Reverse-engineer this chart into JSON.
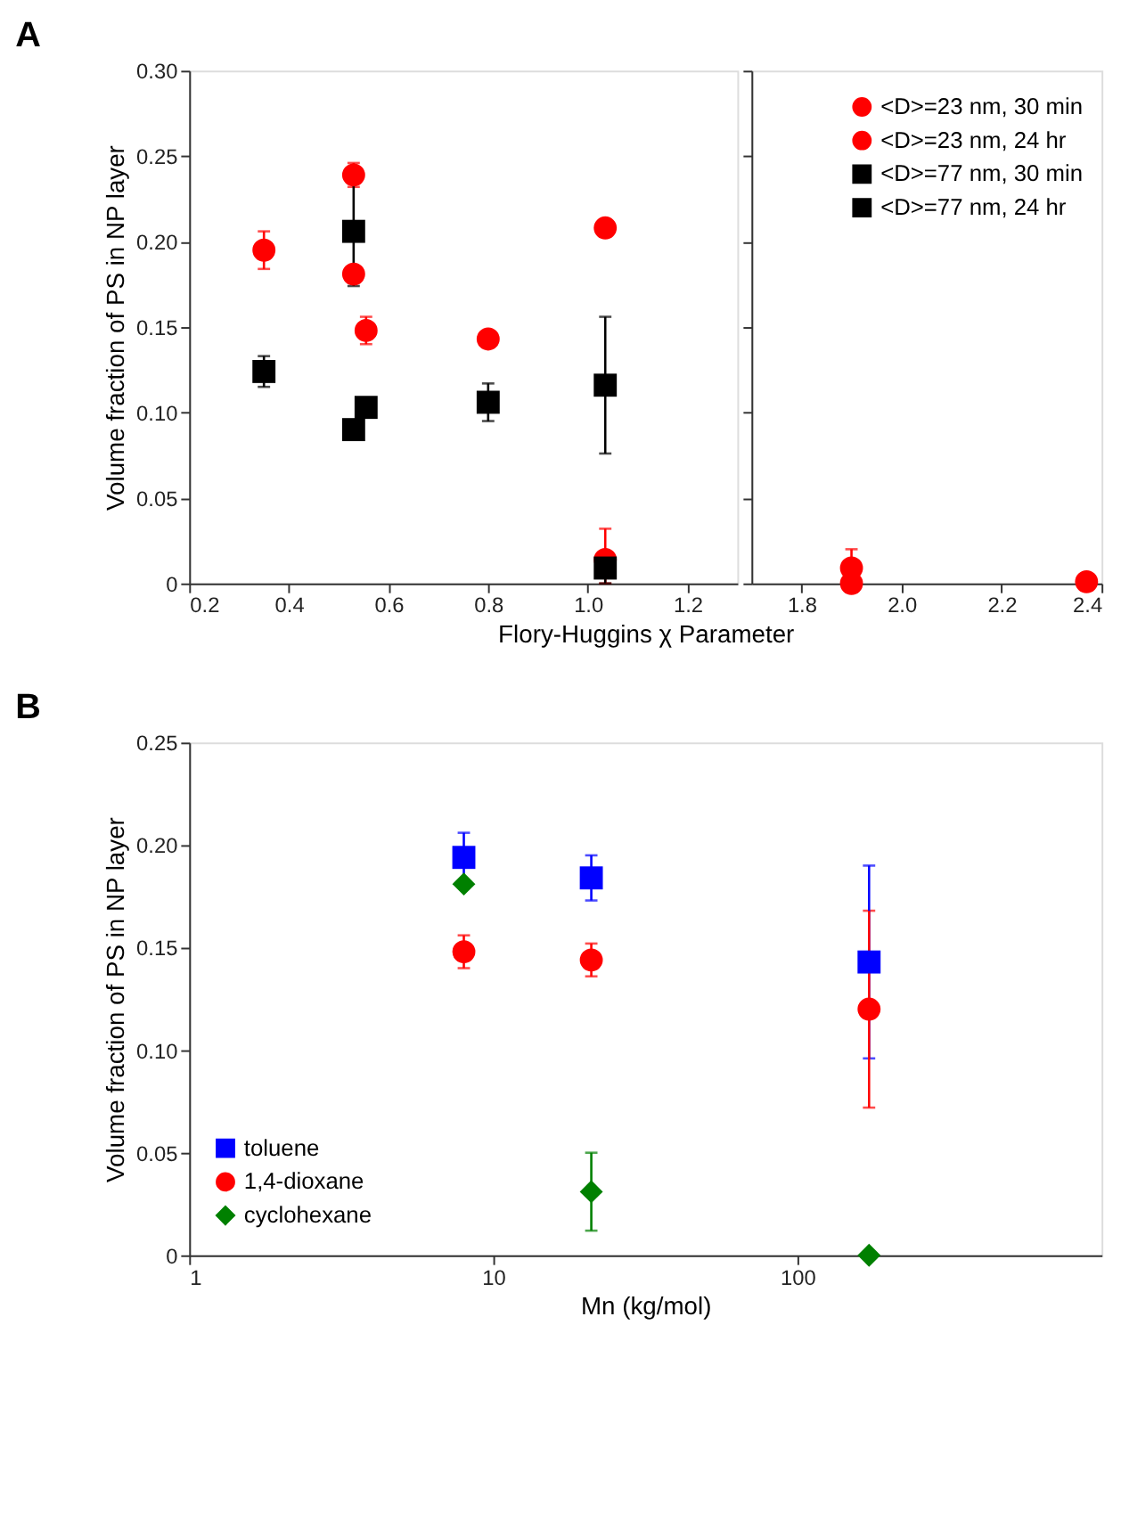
{
  "chart_data": [
    {
      "type": "scatter",
      "title": "A",
      "ylabel": "Volume fraction of PS in NP layer",
      "xlabel": "Flory-Huggins χ Parameter",
      "legend": "top right",
      "xlim": [
        0.2,
        1.3
      ],
      "xticks": [
        0.2,
        0.4,
        0.6,
        0.8,
        {
          "value": 1.0,
          "label": "1.0"
        },
        1.2
      ],
      "ylim": [
        0,
        0.3
      ],
      "yticks": [
        0,
        0.05,
        {
          "value": 0.1,
          "label": "0.10"
        },
        0.15,
        {
          "value": 0.2,
          "label": "0.20"
        },
        0.25,
        {
          "value": 0.3,
          "label": "0.30"
        }
      ],
      "series": [
        {
          "name": "<D>=23 nm, 30 min",
          "color": "#ff0000",
          "marker": "circle",
          "x": [
            0.35,
            0.53,
            0.555,
            0.8,
            1.035
          ],
          "values": [
            0.195,
            0.181,
            0.148,
            0.143,
            0.014
          ],
          "errors": [
            0.011,
            null,
            0.008,
            null,
            [
              0.0,
              0.032
            ]
          ]
        },
        {
          "name": "<D>=23 nm, 24 hr",
          "color": "#ff0000",
          "marker": "circle",
          "x": [
            0.53,
            1.035
          ],
          "values": [
            0.239,
            0.208
          ],
          "errors": [
            0.007,
            0.004
          ]
        },
        {
          "name": "<D>=77 nm, 30 min",
          "color": "#000000",
          "marker": "square",
          "x": [
            0.35,
            0.53,
            0.555,
            0.8,
            1.035
          ],
          "values": [
            0.124,
            0.09,
            0.103,
            0.106,
            0.009
          ],
          "errors": [
            0.009,
            null,
            null,
            0.011,
            0.009
          ]
        },
        {
          "name": "<D>=77 nm, 24 hr",
          "color": "#000000",
          "marker": "square",
          "x": [
            0.53,
            1.035
          ],
          "values": [
            0.206,
            0.116
          ],
          "errors": [
            0.032,
            0.04
          ]
        }
      ]
    },
    {
      "type": "scatter",
      "xlim": [
        1.7,
        2.4
      ],
      "xticks": [
        1.8,
        {
          "value": 2.0,
          "label": "2.0"
        },
        2.2,
        2.4
      ],
      "ylim": [
        0,
        0.3
      ],
      "yticks": [
        0,
        0.05,
        0.1,
        0.15,
        0.2,
        0.25,
        0.3
      ],
      "tick_labels": "x",
      "series": [
        {
          "color": "#ff0000",
          "marker": "circle",
          "x": [
            1.9,
            2.37
          ],
          "values": [
            0.009,
            0.001
          ],
          "errors": [
            [
              0.009,
              0.02
            ],
            null
          ]
        },
        {
          "color": "#ff0000",
          "marker": "circle",
          "x": [
            1.9
          ],
          "values": [
            0.0
          ],
          "errors": [
            null
          ]
        }
      ]
    },
    {
      "type": "scatter",
      "title": "B",
      "ylabel": "Volume fraction of PS in NP layer",
      "xlabel": "Mn (kg/mol)",
      "log": "x",
      "xlim": [
        1,
        1000
      ],
      "xticks": [
        1,
        10,
        100
      ],
      "ylim": [
        0,
        0.25
      ],
      "yticks": [
        0,
        0.05,
        {
          "value": 0.1,
          "label": "0.10"
        },
        0.15,
        {
          "value": 0.2,
          "label": "0.20"
        },
        0.25
      ],
      "legend": "bottom left",
      "series": [
        {
          "name": "toluene",
          "color": "#0000ff",
          "marker": "square",
          "x": [
            8.0,
            21,
            172
          ],
          "values": [
            0.194,
            0.184,
            0.143
          ],
          "errors": [
            0.012,
            0.011,
            0.047
          ]
        },
        {
          "name": "1,4-dioxane",
          "color": "#ff0000",
          "marker": "circle",
          "x": [
            8.0,
            21,
            172
          ],
          "values": [
            0.148,
            0.144,
            0.12
          ],
          "errors": [
            0.008,
            0.008,
            0.048
          ]
        },
        {
          "name": "cyclohexane",
          "color": "#008000",
          "marker": "diamond",
          "x": [
            8.0,
            21,
            172
          ],
          "values": [
            0.181,
            0.031,
            0.0
          ],
          "errors": [
            null,
            0.019,
            null
          ]
        }
      ]
    }
  ]
}
